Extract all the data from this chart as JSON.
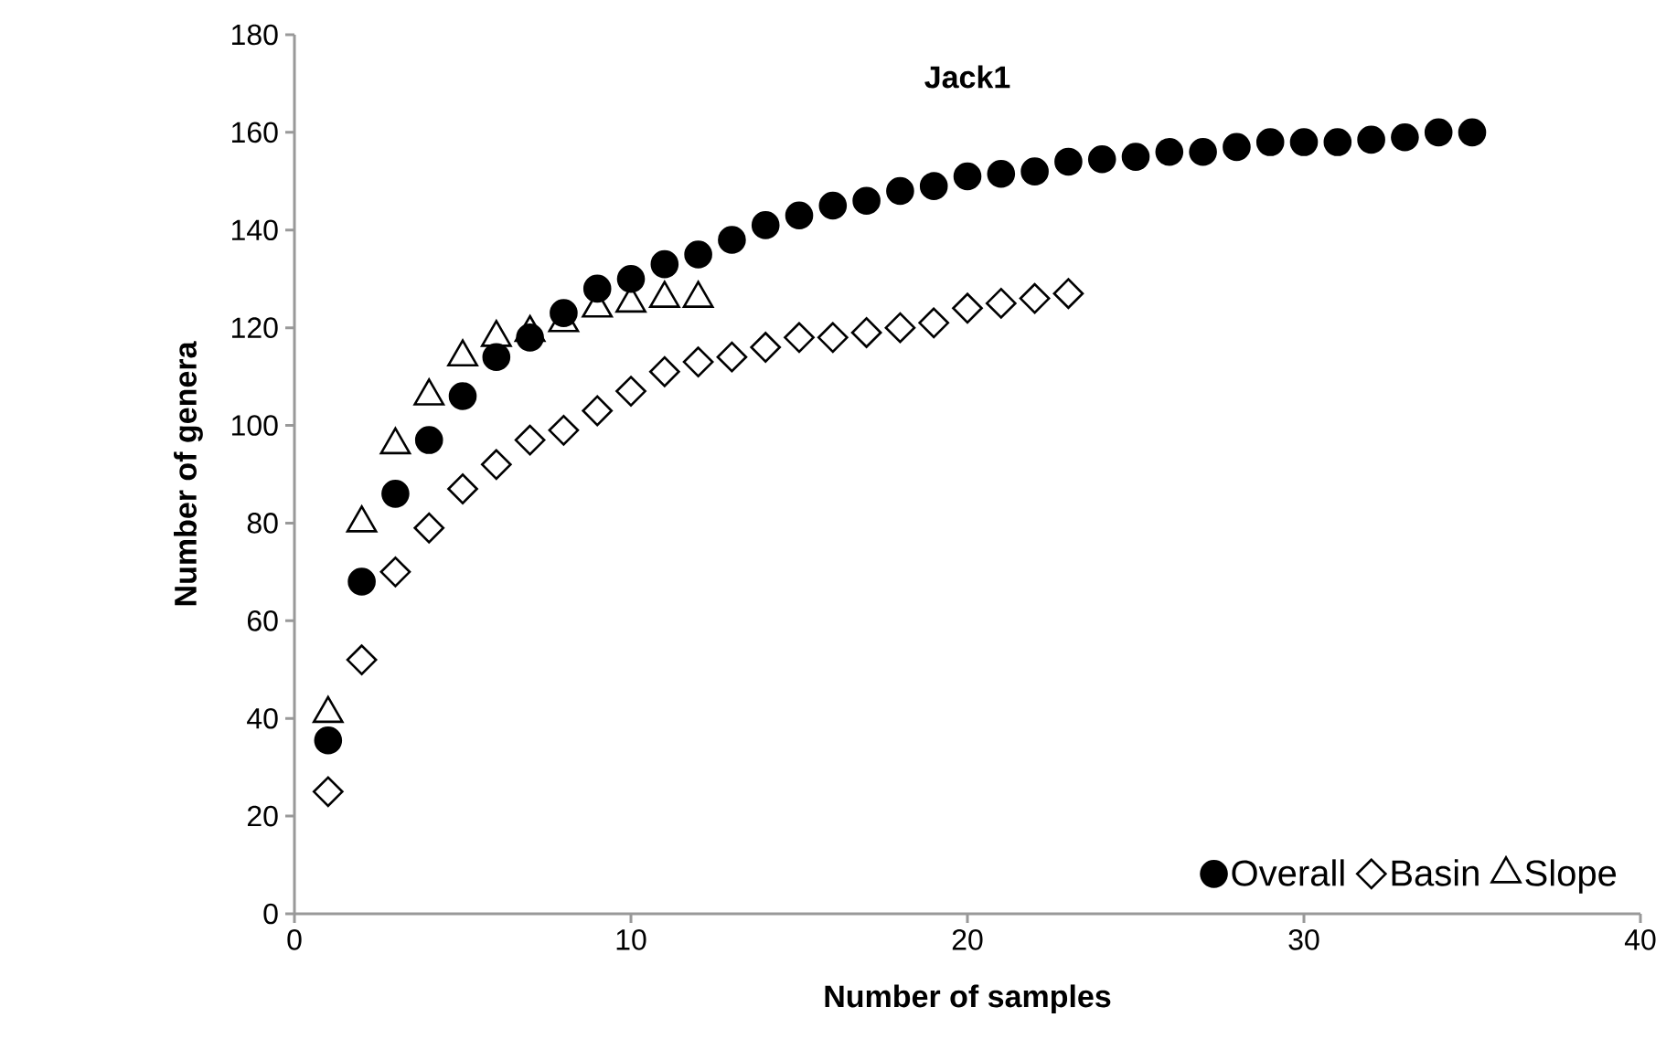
{
  "chart_data": {
    "type": "scatter",
    "title": "Jack1",
    "xlabel": "Number of samples",
    "ylabel": "Number of genera",
    "xlim": [
      0,
      40
    ],
    "xticks": [
      0,
      10,
      20,
      30,
      40
    ],
    "ylim": [
      0,
      180
    ],
    "yticks": [
      0,
      20,
      40,
      60,
      80,
      100,
      120,
      140,
      160,
      180
    ],
    "grid": false,
    "legend": "bottom right",
    "series": [
      {
        "name": "Overall",
        "color": "#000000",
        "marker": "circle",
        "x": [
          1,
          2,
          3,
          4,
          5,
          6,
          7,
          8,
          9,
          10,
          11,
          12,
          13,
          14,
          15,
          16,
          17,
          18,
          19,
          20,
          21,
          22,
          23,
          24,
          25,
          26,
          27,
          28,
          29,
          30,
          31,
          32,
          33,
          34,
          35
        ],
        "values": [
          35.5,
          68,
          86,
          97,
          106,
          114,
          118,
          123,
          128,
          130,
          133,
          135,
          138,
          141,
          143,
          145,
          146,
          148,
          149,
          151,
          151.5,
          152,
          154,
          154.5,
          155,
          156,
          156,
          157,
          158,
          158,
          158,
          158.5,
          159,
          160,
          160
        ]
      },
      {
        "name": "Basin",
        "color": "#000000",
        "marker": "diamond",
        "x": [
          1,
          2,
          3,
          4,
          5,
          6,
          7,
          8,
          9,
          10,
          11,
          12,
          13,
          14,
          15,
          16,
          17,
          18,
          19,
          20,
          21,
          22,
          23
        ],
        "values": [
          25,
          52,
          70,
          79,
          87,
          92,
          97,
          99,
          103,
          107,
          111,
          113,
          114,
          116,
          118,
          118,
          119,
          120,
          121,
          124,
          125,
          126,
          127
        ]
      },
      {
        "name": "Slope",
        "color": "#000000",
        "marker": "triangle",
        "x": [
          1,
          2,
          3,
          4,
          5,
          6,
          7,
          8,
          9,
          10,
          11,
          12
        ],
        "values": [
          41,
          80,
          96,
          106,
          114,
          118,
          119,
          121,
          124,
          125,
          126,
          126
        ]
      }
    ]
  }
}
